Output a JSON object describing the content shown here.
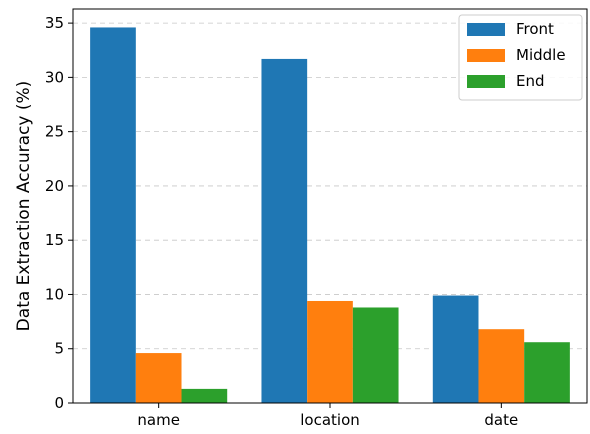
{
  "chart_data": {
    "type": "bar",
    "title": "",
    "xlabel": "",
    "ylabel": "Data Extraction Accuracy (%)",
    "categories": [
      "name",
      "location",
      "date"
    ],
    "series": [
      {
        "name": "Front",
        "color": "#1f77b4",
        "values": [
          34.6,
          31.7,
          9.9
        ]
      },
      {
        "name": "Middle",
        "color": "#ff7f0e",
        "values": [
          4.6,
          9.4,
          6.8
        ]
      },
      {
        "name": "End",
        "color": "#2ca02c",
        "values": [
          1.3,
          8.8,
          5.6
        ]
      }
    ],
    "ylim": [
      0,
      36.3
    ],
    "yticks": [
      "0",
      "5",
      "10",
      "15",
      "20",
      "25",
      "30",
      "35"
    ],
    "grid": "horizontal dashed",
    "legend_position": "top-right"
  }
}
